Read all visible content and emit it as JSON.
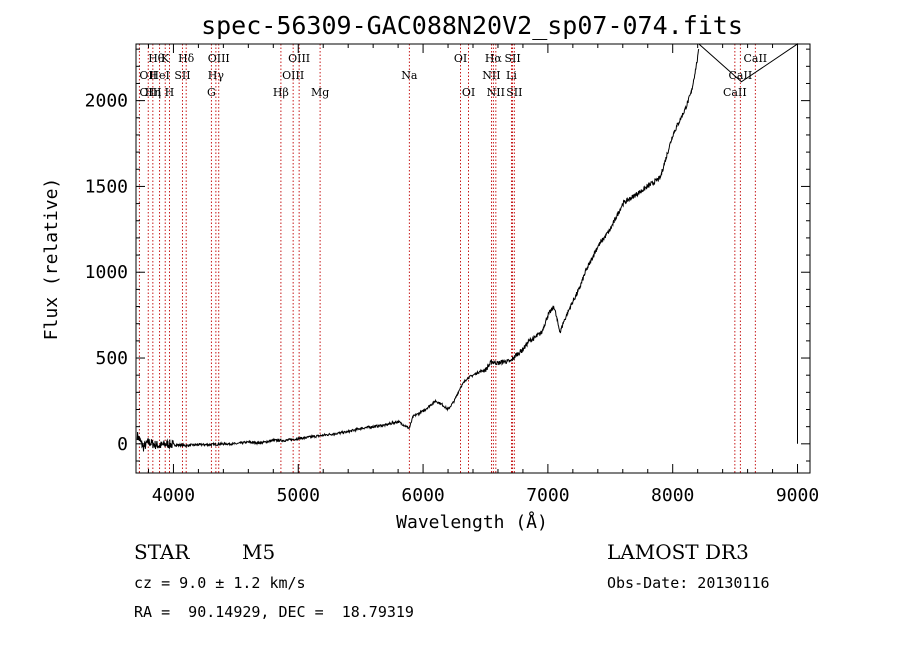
{
  "chart_data": {
    "type": "line",
    "title": "spec-56309-GAC088N20V2_sp07-074.fits",
    "xlabel": "Wavelength (Å)",
    "ylabel": "Flux (relative)",
    "xlim": [
      3700,
      9100
    ],
    "ylim": [
      -170,
      2330
    ],
    "x_ticks": [
      4000,
      5000,
      6000,
      7000,
      8000,
      9000
    ],
    "x_tick_labels": [
      "4000",
      "5000",
      "6000",
      "7000",
      "8000",
      "9000"
    ],
    "y_ticks": [
      0,
      500,
      1000,
      1500,
      2000
    ],
    "y_tick_labels": [
      "0",
      "500",
      "1000",
      "1500",
      "2000"
    ],
    "series": [
      {
        "name": "spectrum",
        "x": [
          3710,
          3760,
          3800,
          3850,
          3900,
          3950,
          4000,
          4100,
          4200,
          4300,
          4400,
          4500,
          4600,
          4700,
          4800,
          4900,
          5000,
          5100,
          5200,
          5300,
          5400,
          5500,
          5600,
          5700,
          5800,
          5890,
          5920,
          6000,
          6100,
          6150,
          6200,
          6250,
          6300,
          6350,
          6400,
          6450,
          6500,
          6550,
          6600,
          6650,
          6700,
          6750,
          6800,
          6850,
          6900,
          6950,
          7000,
          7050,
          7080,
          7100,
          7120,
          7150,
          7200,
          7250,
          7300,
          7400,
          7500,
          7600,
          7700,
          7800,
          7900,
          8000,
          8100,
          8150,
          8200,
          8210
        ],
        "y": [
          50,
          -20,
          10,
          -5,
          -10,
          0,
          -5,
          -10,
          -5,
          -5,
          0,
          0,
          10,
          5,
          20,
          20,
          30,
          40,
          50,
          60,
          70,
          90,
          100,
          110,
          130,
          90,
          160,
          190,
          250,
          230,
          200,
          250,
          330,
          380,
          400,
          420,
          430,
          480,
          470,
          480,
          480,
          520,
          550,
          600,
          620,
          650,
          750,
          800,
          700,
          650,
          700,
          750,
          830,
          900,
          1000,
          1150,
          1250,
          1400,
          1450,
          1500,
          1550,
          1800,
          1950,
          2050,
          2250,
          2300
        ]
      },
      {
        "name": "end-segment",
        "x": [
          8210,
          8550,
          9000,
          9000
        ],
        "y": [
          2330,
          2110,
          2330,
          0
        ]
      }
    ],
    "spectral_lines": [
      {
        "name": "Hθ",
        "x": 3798,
        "row": 0,
        "anchor": "start"
      },
      {
        "name": "K",
        "x": 3934,
        "row": 0,
        "anchor": "middle"
      },
      {
        "name": "Hδ",
        "x": 4102,
        "row": 0,
        "anchor": "middle"
      },
      {
        "name": "OIII",
        "x": 4363,
        "row": 0,
        "anchor": "middle"
      },
      {
        "name": "OIII",
        "x": 5007,
        "row": 0,
        "anchor": "middle"
      },
      {
        "name": "OI",
        "x": 6300,
        "row": 0,
        "anchor": "middle"
      },
      {
        "name": "Hα",
        "x": 6563,
        "row": 0,
        "anchor": "middle"
      },
      {
        "name": "SII",
        "x": 6717,
        "row": 0,
        "anchor": "middle"
      },
      {
        "name": "CaII",
        "x": 8662,
        "row": 0,
        "anchor": "middle"
      },
      {
        "name": "OII",
        "x": 3727,
        "row": 1,
        "anchor": "start"
      },
      {
        "name": "HeI",
        "x": 3889,
        "row": 1,
        "anchor": "middle"
      },
      {
        "name": "SII",
        "x": 4072,
        "row": 1,
        "anchor": "middle"
      },
      {
        "name": "Hγ",
        "x": 4340,
        "row": 1,
        "anchor": "middle"
      },
      {
        "name": "OIII",
        "x": 4959,
        "row": 1,
        "anchor": "middle"
      },
      {
        "name": "Na",
        "x": 5890,
        "row": 1,
        "anchor": "middle"
      },
      {
        "name": "NII",
        "x": 6548,
        "row": 1,
        "anchor": "middle"
      },
      {
        "name": "Li",
        "x": 6708,
        "row": 1,
        "anchor": "middle"
      },
      {
        "name": "CaII",
        "x": 8542,
        "row": 1,
        "anchor": "middle"
      },
      {
        "name": "OIII",
        "x": 3727,
        "row": 2,
        "anchor": "start"
      },
      {
        "name": "Hη",
        "x": 3835,
        "row": 2,
        "anchor": "middle"
      },
      {
        "name": "H",
        "x": 3968,
        "row": 2,
        "anchor": "middle"
      },
      {
        "name": "G",
        "x": 4304,
        "row": 2,
        "anchor": "middle"
      },
      {
        "name": "Hβ",
        "x": 4861,
        "row": 2,
        "anchor": "middle"
      },
      {
        "name": "Mg",
        "x": 5175,
        "row": 2,
        "anchor": "middle"
      },
      {
        "name": "OI",
        "x": 6364,
        "row": 2,
        "anchor": "middle"
      },
      {
        "name": "NII",
        "x": 6583,
        "row": 2,
        "anchor": "middle"
      },
      {
        "name": "SII",
        "x": 6731,
        "row": 2,
        "anchor": "middle"
      },
      {
        "name": "CaII",
        "x": 8498,
        "row": 2,
        "anchor": "middle"
      }
    ]
  },
  "info": {
    "object_class": "STAR",
    "subclass": "M5",
    "survey": "LAMOST DR3",
    "cz": "cz = 9.0 ± 1.2 km/s",
    "obs_date": "Obs-Date: 20130116",
    "coords": "RA =  90.14929, DEC =  18.79319"
  },
  "colors": {
    "line_marker": "#c00000",
    "spectrum": "#000000"
  }
}
